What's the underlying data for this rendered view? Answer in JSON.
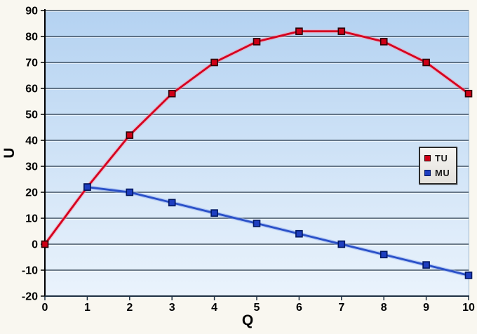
{
  "chart_data": {
    "type": "line",
    "title": "",
    "xlabel": "Q",
    "ylabel": "U",
    "xlim": [
      0,
      10
    ],
    "ylim": [
      -20,
      90
    ],
    "x_ticks": [
      0,
      1,
      2,
      3,
      4,
      5,
      6,
      7,
      8,
      9,
      10
    ],
    "y_ticks": [
      90,
      80,
      70,
      60,
      50,
      40,
      30,
      20,
      10,
      0,
      -10,
      -20
    ],
    "grid": "horizontal",
    "legend_position": "middle-right",
    "series": [
      {
        "name": "TU",
        "x": [
          0,
          1,
          2,
          3,
          4,
          5,
          6,
          7,
          8,
          9,
          10
        ],
        "values": [
          0,
          22,
          42,
          58,
          70,
          78,
          82,
          82,
          78,
          70,
          58
        ],
        "line_color": "#d6001e",
        "glow_color": "rgba(248,150,170,0.5)",
        "marker_fill": "#cf0016",
        "marker_border": "#2a0005"
      },
      {
        "name": "MU",
        "x": [
          1,
          2,
          3,
          4,
          5,
          6,
          7,
          8,
          9,
          10
        ],
        "values": [
          22,
          20,
          16,
          12,
          8,
          4,
          0,
          -4,
          -8,
          -12
        ],
        "line_color": "#2a50c8",
        "glow_color": "rgba(140,170,240,0.5)",
        "marker_fill": "#1e3ec0",
        "marker_border": "#001660"
      }
    ]
  },
  "colors": {
    "outer_background": "#f9f7f0",
    "plot_bg_top": "#b4d2f1",
    "plot_bg_bottom": "#eaf3fc",
    "gridline": "#1f3042",
    "gridline_highlight": "rgba(255,255,255,0.65)",
    "axis": "#000000",
    "plot_right_edge": "#9fb6c9",
    "tick_label": "#000000"
  }
}
